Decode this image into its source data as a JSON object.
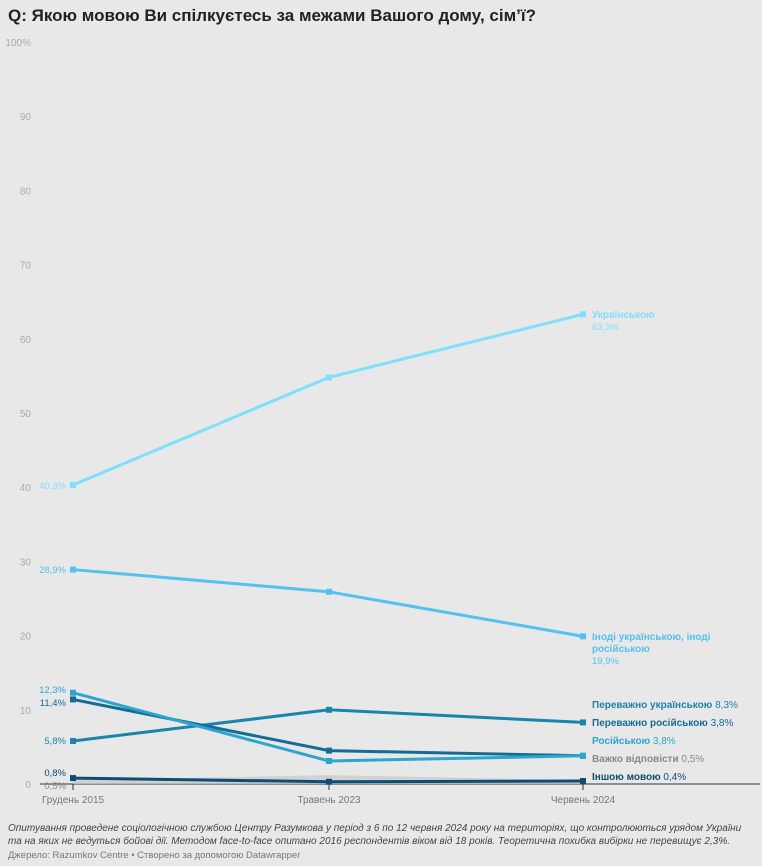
{
  "chart_data": {
    "type": "line",
    "title": "Q: Якою мовою Ви спілкуєтесь за межами Вашого дому, сім’ї?",
    "categories": [
      "Грудень 2015",
      "Травень 2023",
      "Червень 2024"
    ],
    "ylim": [
      0,
      100
    ],
    "yticks": [
      "0",
      "10",
      "20",
      "30",
      "40",
      "50",
      "60",
      "70",
      "80",
      "90",
      "100%"
    ],
    "series": [
      {
        "name": "Українською",
        "values": [
          40.3,
          54.8,
          63.3
        ],
        "color": "#7fe0fb",
        "start_label": "40,3%",
        "end_label": "63,3%"
      },
      {
        "name": "Іноді українською, іноді російською",
        "values": [
          28.9,
          25.9,
          19.9
        ],
        "color": "#55c1ee",
        "start_label": "28,9%",
        "end_label": "19,9%"
      },
      {
        "name": "Переважно українською",
        "values": [
          5.8,
          10.0,
          8.3
        ],
        "color": "#1a84ad",
        "start_label": "5,8%",
        "end_label": "8,3%"
      },
      {
        "name": "Переважно російською",
        "values": [
          11.4,
          4.5,
          3.8
        ],
        "color": "#146c94",
        "start_label": "11,4%",
        "end_label": "3,8%"
      },
      {
        "name": "Російською",
        "values": [
          12.3,
          3.1,
          3.8
        ],
        "color": "#2ba6cf",
        "start_label": "12,3%",
        "end_label": "3,8%"
      },
      {
        "name": "Важко відповісти",
        "values": [
          0.5,
          1.2,
          0.5
        ],
        "color": "#c8c8c8",
        "start_label": "0,5%",
        "end_label": "0,5%"
      },
      {
        "name": "Іншою мовою",
        "values": [
          0.8,
          0.3,
          0.4
        ],
        "color": "#0d4d72",
        "start_label": "0,8%",
        "end_label": "0,4%"
      }
    ]
  },
  "footer": {
    "note": "Опитування проведене соціологічною службою Центру Разумкова у період з 6 по 12 червня 2024 року на територіях, що контролюються урядом України та на яких не ведуться бойові дії. Методом face-to-face опитано 2016 респондентів віком від 18 років. Теоретична похибка вибірки не перевищує 2,3%.",
    "source": "Джерело: Razumkov Centre • Створено за допомогою Datawrapper"
  }
}
